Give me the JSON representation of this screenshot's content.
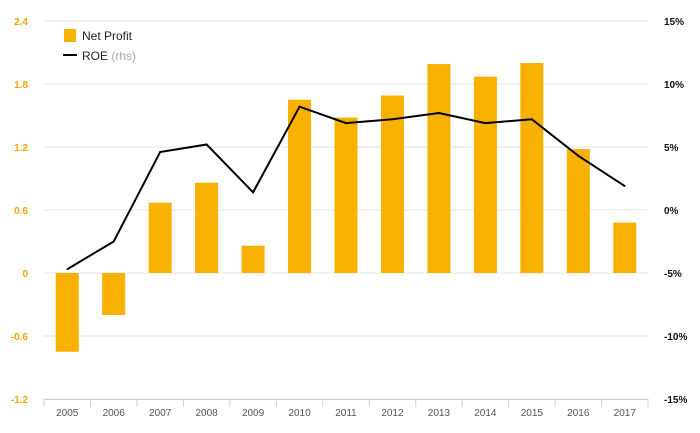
{
  "chart_data": {
    "type": "bar",
    "categories": [
      "2005",
      "2006",
      "2007",
      "2008",
      "2009",
      "2010",
      "2011",
      "2012",
      "2013",
      "2014",
      "2015",
      "2016",
      "2017"
    ],
    "series": [
      {
        "name": "Net Profit",
        "type": "bar",
        "axis": "left",
        "color": "#f8b100",
        "values": [
          -0.75,
          -0.4,
          0.67,
          0.86,
          0.26,
          1.65,
          1.48,
          1.69,
          1.99,
          1.87,
          2.0,
          1.18,
          0.48
        ]
      },
      {
        "name": "ROE",
        "name_suffix": "(rhs)",
        "type": "line",
        "axis": "right",
        "color": "#000000",
        "values": [
          -4.7,
          -2.5,
          4.6,
          5.2,
          1.4,
          8.2,
          6.9,
          7.2,
          7.7,
          6.9,
          7.2,
          4.3,
          1.9
        ]
      }
    ],
    "y_left": {
      "min": -1.2,
      "max": 2.4,
      "ticks": [
        "-1.2",
        "-0.6",
        "0",
        "0.6",
        "1.2",
        "1.8",
        "2.4"
      ],
      "tick_values": [
        -1.2,
        -0.6,
        0,
        0.6,
        1.2,
        1.8,
        2.4
      ]
    },
    "y_right": {
      "min": -15,
      "max": 15,
      "ticks": [
        "-15%",
        "-10%",
        "-5%",
        "0%",
        "5%",
        "10%",
        "15%"
      ],
      "tick_values": [
        -15,
        -10,
        -5,
        0,
        5,
        10,
        15
      ]
    },
    "grid": true,
    "legend_placement": "top-left",
    "title": "",
    "xlabel": "",
    "ylabel": ""
  }
}
